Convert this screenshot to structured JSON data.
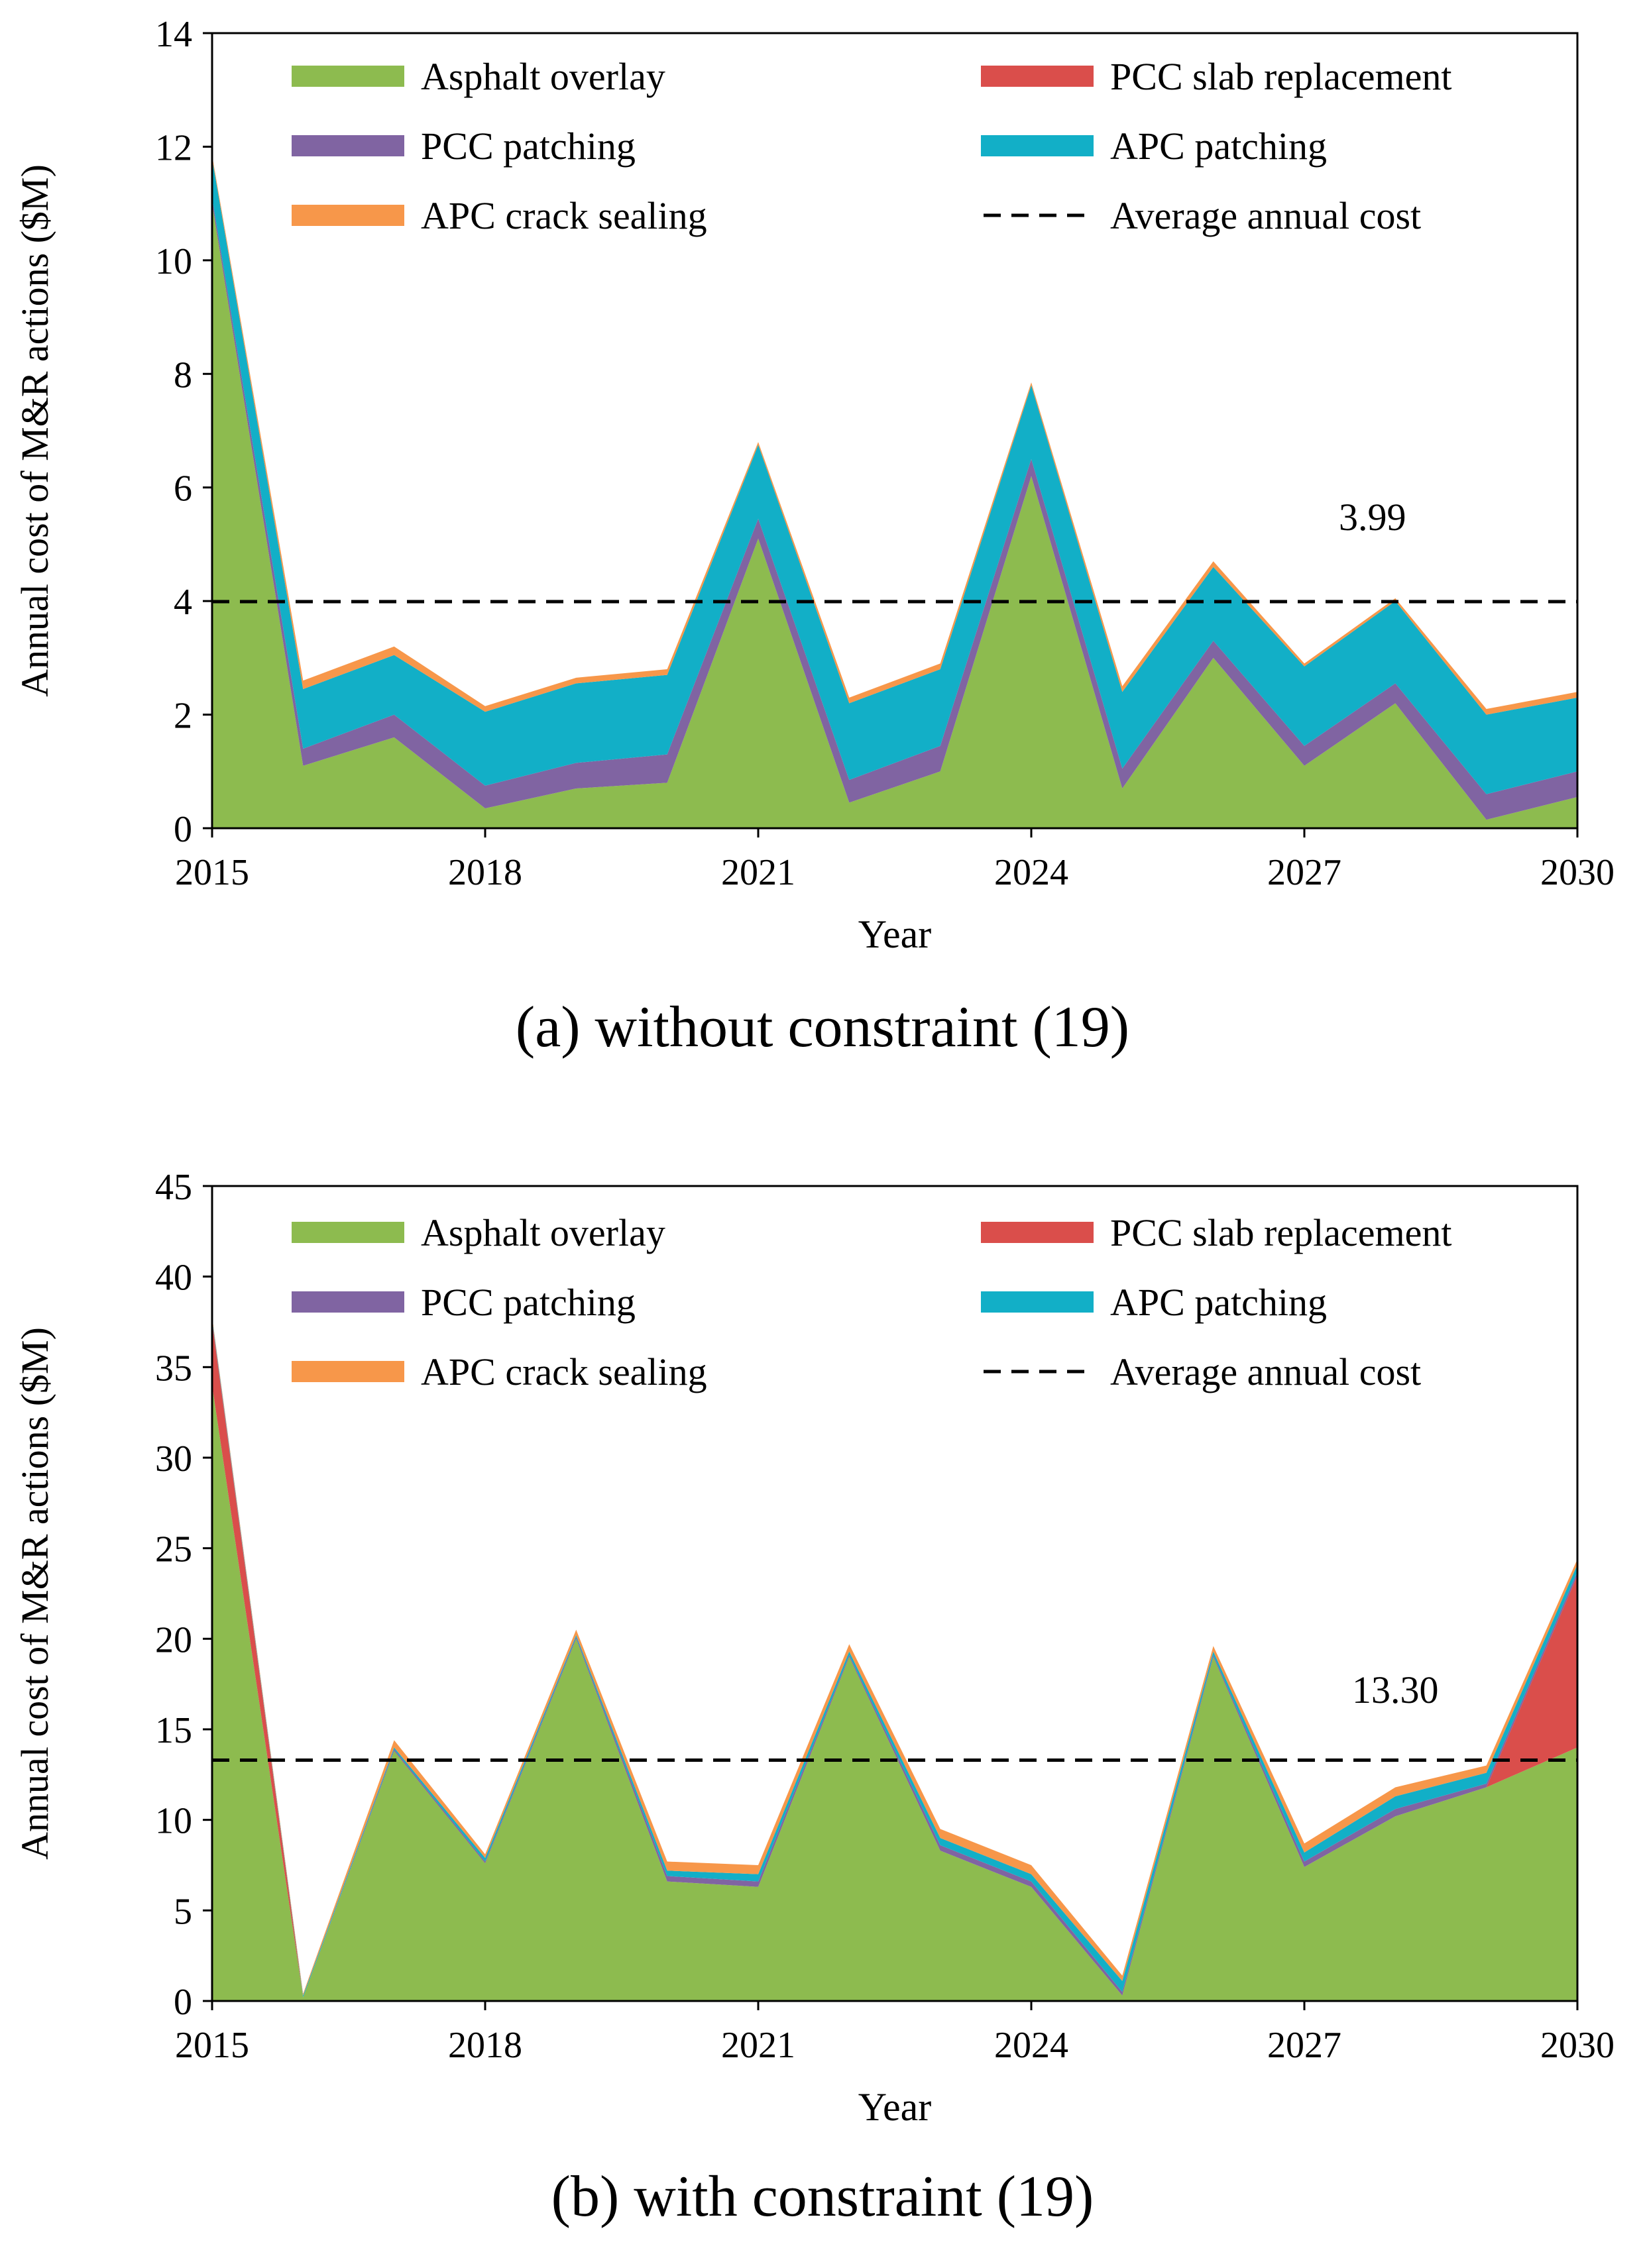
{
  "colors": {
    "asphalt_overlay": "#8DBB4F",
    "pcc_slab_replacement": "#DA4E4B",
    "pcc_patching": "#8064A2",
    "apc_patching": "#12AFC7",
    "apc_crack_sealing": "#F7974A",
    "average_line": "#000000"
  },
  "chart_data": [
    {
      "type": "area",
      "stacked": true,
      "caption": "(a) without constraint (19)",
      "xlabel": "Year",
      "ylabel": "Annual cost of M&R actions ($M)",
      "x": [
        2015,
        2016,
        2017,
        2018,
        2019,
        2020,
        2021,
        2022,
        2023,
        2024,
        2025,
        2026,
        2027,
        2028,
        2029,
        2030
      ],
      "xticks": [
        2015,
        2018,
        2021,
        2024,
        2027,
        2030
      ],
      "xlim": [
        2015,
        2030
      ],
      "ylim": [
        0,
        14
      ],
      "yticks": [
        0,
        2,
        4,
        6,
        8,
        10,
        12,
        14
      ],
      "series": [
        {
          "name": "Asphalt overlay",
          "color": "#8DBB4F",
          "values": [
            11.0,
            1.1,
            1.6,
            0.35,
            0.7,
            0.8,
            5.1,
            0.45,
            1.0,
            6.2,
            0.7,
            3.0,
            1.1,
            2.2,
            0.15,
            0.55
          ]
        },
        {
          "name": "PCC slab replacement",
          "color": "#DA4E4B",
          "values": [
            0,
            0,
            0,
            0,
            0,
            0,
            0,
            0,
            0,
            0,
            0,
            0,
            0,
            0,
            0,
            0
          ]
        },
        {
          "name": "PCC patching",
          "color": "#8064A2",
          "values": [
            0.1,
            0.3,
            0.4,
            0.4,
            0.45,
            0.5,
            0.35,
            0.4,
            0.45,
            0.3,
            0.35,
            0.3,
            0.35,
            0.35,
            0.45,
            0.45
          ]
        },
        {
          "name": "APC patching",
          "color": "#12AFC7",
          "values": [
            0.7,
            1.05,
            1.05,
            1.3,
            1.4,
            1.4,
            1.3,
            1.35,
            1.35,
            1.3,
            1.35,
            1.3,
            1.4,
            1.45,
            1.4,
            1.3
          ]
        },
        {
          "name": "APC crack sealing",
          "color": "#F7974A",
          "values": [
            0.05,
            0.15,
            0.15,
            0.1,
            0.1,
            0.1,
            0.05,
            0.1,
            0.1,
            0.05,
            0.1,
            0.1,
            0.05,
            0.05,
            0.1,
            0.1
          ]
        }
      ],
      "average": {
        "label": "Average annual cost",
        "value": 3.99,
        "annotation": "3.99"
      }
    },
    {
      "type": "area",
      "stacked": true,
      "caption": "(b) with constraint (19)",
      "xlabel": "Year",
      "ylabel": "Annual cost of M&R actions ($M)",
      "x": [
        2015,
        2016,
        2017,
        2018,
        2019,
        2020,
        2021,
        2022,
        2023,
        2024,
        2025,
        2026,
        2027,
        2028,
        2029,
        2030
      ],
      "xticks": [
        2015,
        2018,
        2021,
        2024,
        2027,
        2030
      ],
      "xlim": [
        2015,
        2030
      ],
      "ylim": [
        0,
        45
      ],
      "yticks": [
        0,
        5,
        10,
        15,
        20,
        25,
        30,
        35,
        40,
        45
      ],
      "series": [
        {
          "name": "Asphalt overlay",
          "color": "#8DBB4F",
          "values": [
            34.0,
            0.2,
            13.8,
            7.6,
            20.0,
            6.6,
            6.3,
            19.0,
            8.3,
            6.3,
            0.3,
            19.0,
            7.4,
            10.2,
            11.8,
            14.0
          ]
        },
        {
          "name": "PCC slab replacement",
          "color": "#DA4E4B",
          "values": [
            3.5,
            0,
            0,
            0,
            0,
            0,
            0,
            0,
            0,
            0,
            0,
            0,
            0,
            0,
            0,
            9.5
          ]
        },
        {
          "name": "PCC patching",
          "color": "#8064A2",
          "values": [
            0.1,
            0,
            0.1,
            0.1,
            0.1,
            0.3,
            0.3,
            0.1,
            0.3,
            0.3,
            0.2,
            0.1,
            0.3,
            0.4,
            0.2,
            0.2
          ]
        },
        {
          "name": "APC patching",
          "color": "#12AFC7",
          "values": [
            0.1,
            0.1,
            0.1,
            0.2,
            0.1,
            0.3,
            0.4,
            0.2,
            0.4,
            0.4,
            0.6,
            0.2,
            0.5,
            0.7,
            0.6,
            0.4
          ]
        },
        {
          "name": "APC crack sealing",
          "color": "#F7974A",
          "values": [
            0.1,
            0.1,
            0.4,
            0.2,
            0.3,
            0.5,
            0.5,
            0.4,
            0.5,
            0.5,
            0.3,
            0.3,
            0.5,
            0.5,
            0.4,
            0.3
          ]
        }
      ],
      "average": {
        "label": "Average annual cost",
        "value": 13.3,
        "annotation": "13.30"
      }
    }
  ]
}
